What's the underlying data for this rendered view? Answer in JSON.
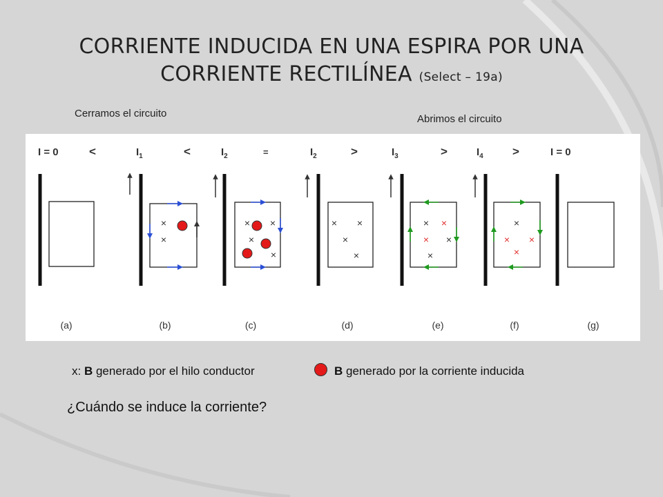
{
  "title": {
    "line1": "CORRIENTE INDUCIDA EN UNA ESPIRA POR UNA",
    "line2": "CORRIENTE RECTILÍNEA",
    "note": "(Select – 19a)"
  },
  "phase_labels": {
    "close": "Cerramos el circuito",
    "open": "Abrimos el circuito"
  },
  "panels": [
    {
      "current": "I = 0",
      "sym": "<",
      "caption": "(a)"
    },
    {
      "current": "I",
      "sub": "1",
      "sym": "<",
      "caption": "(b)"
    },
    {
      "current": "I",
      "sub": "2",
      "sym": "=",
      "caption": "(c)"
    },
    {
      "current": "I",
      "sub": "2",
      "sym": ">",
      "caption": "(d)"
    },
    {
      "current": "I",
      "sub": "3",
      "sym": ">",
      "caption": "(e)"
    },
    {
      "current": "I",
      "sub": "4",
      "sym": ">",
      "caption": "(f)"
    },
    {
      "current": "I = 0",
      "sym": "",
      "caption": "(g)"
    }
  ],
  "marker_x": "×",
  "legend": {
    "x_prefix": "x: ",
    "b": "B",
    "wire_text": " generado por el hilo conductor",
    "induced_text": " generado por la corriente inducida"
  },
  "question": "¿Cuándo se induce la corriente?",
  "colors": {
    "background": "#d6d6d6",
    "blue_arrow": "#2b4fd6",
    "green_arrow": "#1f9a1f",
    "red_dot": "#e41a1a",
    "red_x": "#e03030"
  }
}
